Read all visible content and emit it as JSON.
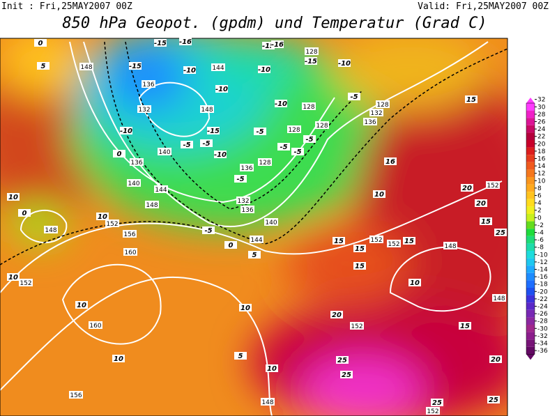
{
  "header": {
    "init": "Init : Fri,25MAY2007 00Z",
    "valid": "Valid: Fri,25MAY2007 00Z",
    "title": "850 hPa Geopot. (gpdm) und Temperatur (Grad C)"
  },
  "geopotential_labels": [
    "148",
    "136",
    "132",
    "148",
    "144",
    "140",
    "136",
    "140",
    "144",
    "148",
    "152",
    "156",
    "160",
    "148",
    "152",
    "160",
    "156",
    "136",
    "132",
    "136",
    "140",
    "144",
    "128",
    "128",
    "128",
    "128",
    "128",
    "132",
    "128",
    "136",
    "152",
    "152",
    "148",
    "152",
    "148",
    "152",
    "148",
    "152"
  ],
  "temperature_labels": [
    "-15",
    "-16",
    "-15",
    "-10",
    "-10",
    "-10",
    "-15",
    "-5",
    "-5",
    "0",
    "-10",
    "-5",
    "-5",
    "-5",
    "-5",
    "-10",
    "-10",
    "-15",
    "-16",
    "-15",
    "-10",
    "-5",
    "-5",
    "-5",
    "0",
    "5",
    "0",
    "5",
    "0",
    "10",
    "10",
    "10",
    "10",
    "5",
    "10",
    "10",
    "10",
    "15",
    "15",
    "15",
    "15",
    "10",
    "15",
    "15",
    "16",
    "20",
    "20",
    "15",
    "25",
    "20",
    "25",
    "25",
    "20",
    "25",
    "25",
    "10"
  ],
  "colorbar": {
    "values": [
      32,
      30,
      28,
      26,
      24,
      22,
      20,
      18,
      16,
      14,
      12,
      10,
      8,
      6,
      4,
      2,
      0,
      -2,
      -4,
      -6,
      -8,
      -10,
      -12,
      -14,
      -16,
      -18,
      -20,
      -22,
      -24,
      -26,
      -28,
      -30,
      -32,
      -34,
      -36
    ],
    "colors": [
      "#ff3cff",
      "#f020c8",
      "#dc1496",
      "#c80a64",
      "#b4003c",
      "#c8002a",
      "#dc1e1e",
      "#e63c1e",
      "#f05a1e",
      "#f5781e",
      "#fa961e",
      "#ffaa1e",
      "#ffc31e",
      "#ffdc1e",
      "#f0f01e",
      "#c8f01e",
      "#64dc1e",
      "#1edc3c",
      "#1edc78",
      "#1edcaa",
      "#1edcdc",
      "#1ec8f0",
      "#1eaaff",
      "#1e8cff",
      "#1e6eff",
      "#1e50f0",
      "#3c32dc",
      "#5a28c8",
      "#7828b4",
      "#8c28a0",
      "#a0288c",
      "#8c1e8c",
      "#781478",
      "#640a64"
    ]
  }
}
